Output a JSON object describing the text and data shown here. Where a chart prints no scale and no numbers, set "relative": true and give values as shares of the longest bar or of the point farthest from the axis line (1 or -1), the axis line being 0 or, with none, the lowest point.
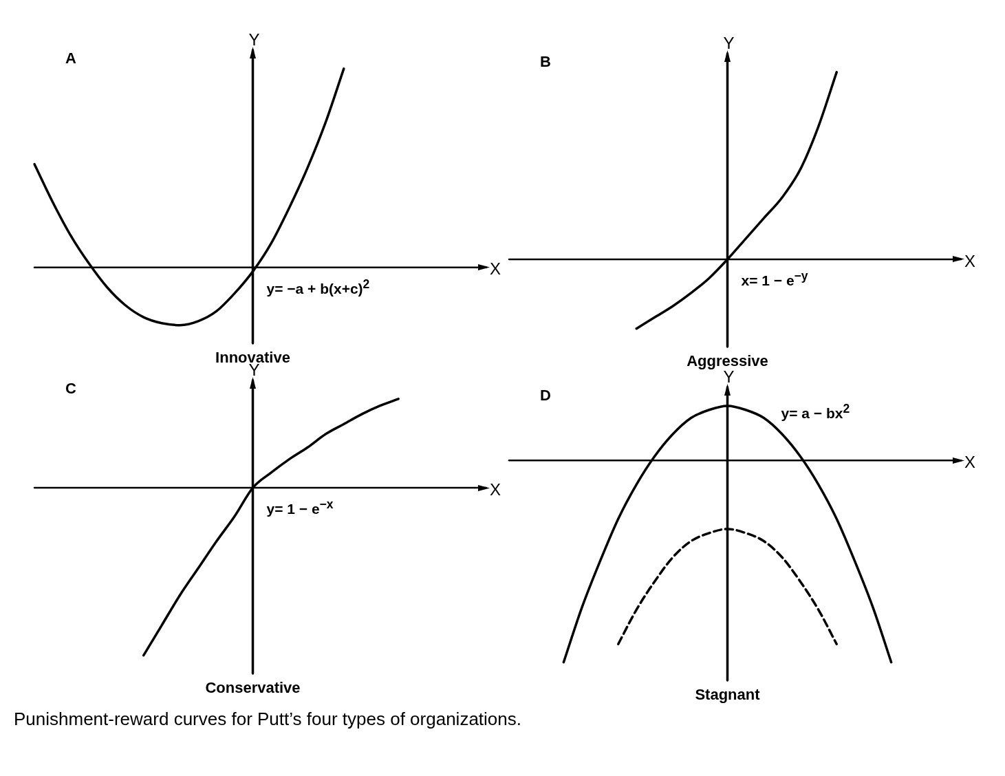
{
  "chart_data": [
    {
      "type": "line",
      "title": "A",
      "subtitle": "Innovative",
      "xlabel": "X",
      "ylabel": "Y",
      "relative": true,
      "tick_labels": false,
      "categories": [
        null,
        null,
        null,
        null,
        null,
        null,
        null,
        null,
        null,
        null,
        null,
        null,
        null,
        null,
        null,
        null,
        null,
        null,
        null,
        null,
        null,
        null,
        null,
        null,
        null
      ],
      "series": [
        {
          "color": "#000000",
          "values": [
            0.52,
            0.33,
            0.16,
            0.02,
            -0.1,
            -0.19,
            -0.25,
            -0.28,
            -0.29,
            -0.27,
            -0.22,
            -0.13,
            -0.02,
            0.12,
            0.3,
            0.5,
            0.73,
            1.0,
            null,
            null,
            null,
            null,
            null,
            null,
            null
          ]
        }
      ],
      "annotations": [
        "y= −a + b(x+c)$^{2}$"
      ]
    },
    {
      "type": "line",
      "title": "B",
      "subtitle": "Aggressive",
      "xlabel": "X",
      "ylabel": "Y",
      "relative": true,
      "tick_labels": false,
      "categories": [
        null,
        null,
        null,
        null,
        null,
        null,
        null,
        null,
        null,
        null,
        null,
        null,
        null,
        null,
        null,
        null,
        null,
        null,
        null,
        null,
        null,
        null,
        null,
        null,
        null
      ],
      "series": [
        {
          "color": "#000000",
          "values": [
            null,
            null,
            null,
            null,
            null,
            null,
            null,
            -0.37,
            -0.31,
            -0.25,
            -0.18,
            -0.1,
            0,
            0.11,
            0.22,
            0.33,
            0.48,
            0.71,
            1.0,
            null,
            null,
            null,
            null,
            null,
            null
          ]
        }
      ],
      "annotations": [
        "x= 1 − e$^{−y}$"
      ]
    },
    {
      "type": "line",
      "title": "C",
      "subtitle": "Conservative",
      "xlabel": "X",
      "ylabel": "Y",
      "relative": true,
      "tick_labels": false,
      "categories": [
        null,
        null,
        null,
        null,
        null,
        null,
        null,
        null,
        null,
        null,
        null,
        null,
        null,
        null,
        null,
        null,
        null,
        null,
        null,
        null,
        null,
        null,
        null,
        null,
        null
      ],
      "series": [
        {
          "color": "#000000",
          "values": [
            null,
            null,
            null,
            null,
            null,
            null,
            -1.0,
            -0.82,
            -0.64,
            -0.48,
            -0.32,
            -0.17,
            0,
            0.09,
            0.17,
            0.24,
            0.32,
            0.38,
            0.44,
            0.49,
            0.53,
            null,
            null,
            null,
            null
          ]
        }
      ],
      "annotations": [
        "y= 1 − e$^{−x}$"
      ]
    },
    {
      "type": "line",
      "title": "D",
      "subtitle": "Stagnant",
      "xlabel": "X",
      "ylabel": "Y",
      "relative": true,
      "tick_labels": false,
      "categories": [
        null,
        null,
        null,
        null,
        null,
        null,
        null,
        null,
        null,
        null,
        null,
        null,
        null,
        null,
        null,
        null,
        null,
        null,
        null,
        null,
        null,
        null,
        null,
        null,
        null
      ],
      "series": [
        {
          "color": "#000000",
          "values": [
            null,
            null,
            null,
            -1.0,
            -0.73,
            -0.5,
            -0.29,
            -0.12,
            0.02,
            0.13,
            0.21,
            0.25,
            0.27,
            0.25,
            0.21,
            0.13,
            0.02,
            -0.12,
            -0.29,
            -0.5,
            -0.73,
            -1.0,
            null,
            null,
            null
          ]
        },
        {
          "color": "#000000",
          "line_style": "dashed",
          "values": [
            null,
            null,
            null,
            null,
            null,
            null,
            -0.91,
            -0.74,
            -0.6,
            -0.48,
            -0.4,
            -0.36,
            -0.34,
            -0.36,
            -0.4,
            -0.48,
            -0.6,
            -0.74,
            -0.91,
            null,
            null,
            null,
            null,
            null,
            null
          ]
        }
      ],
      "annotations": [
        "y= a − bx$^{2}$",
        "Punishment-reward curves for Putt’s four types of organizations."
      ]
    }
  ]
}
